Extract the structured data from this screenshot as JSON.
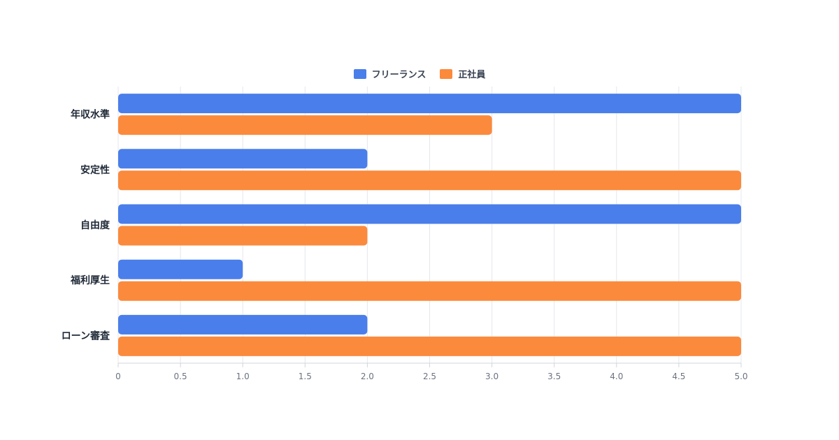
{
  "chart_data": {
    "type": "bar",
    "orientation": "horizontal",
    "categories": [
      "年収水準",
      "安定性",
      "自由度",
      "福利厚生",
      "ローン審査"
    ],
    "series": [
      {
        "name": "フリーランス",
        "color": "#4a7eea",
        "values": [
          5,
          2,
          5,
          1,
          2
        ]
      },
      {
        "name": "正社員",
        "color": "#fb8a3c",
        "values": [
          3,
          5,
          2,
          5,
          5
        ]
      }
    ],
    "xlim": [
      0,
      5
    ],
    "xticks": [
      "0",
      "0.5",
      "1.0",
      "1.5",
      "2.0",
      "2.5",
      "3.0",
      "3.5",
      "4.0",
      "4.5",
      "5.0"
    ],
    "grid": true,
    "legend_position": "top-center"
  }
}
